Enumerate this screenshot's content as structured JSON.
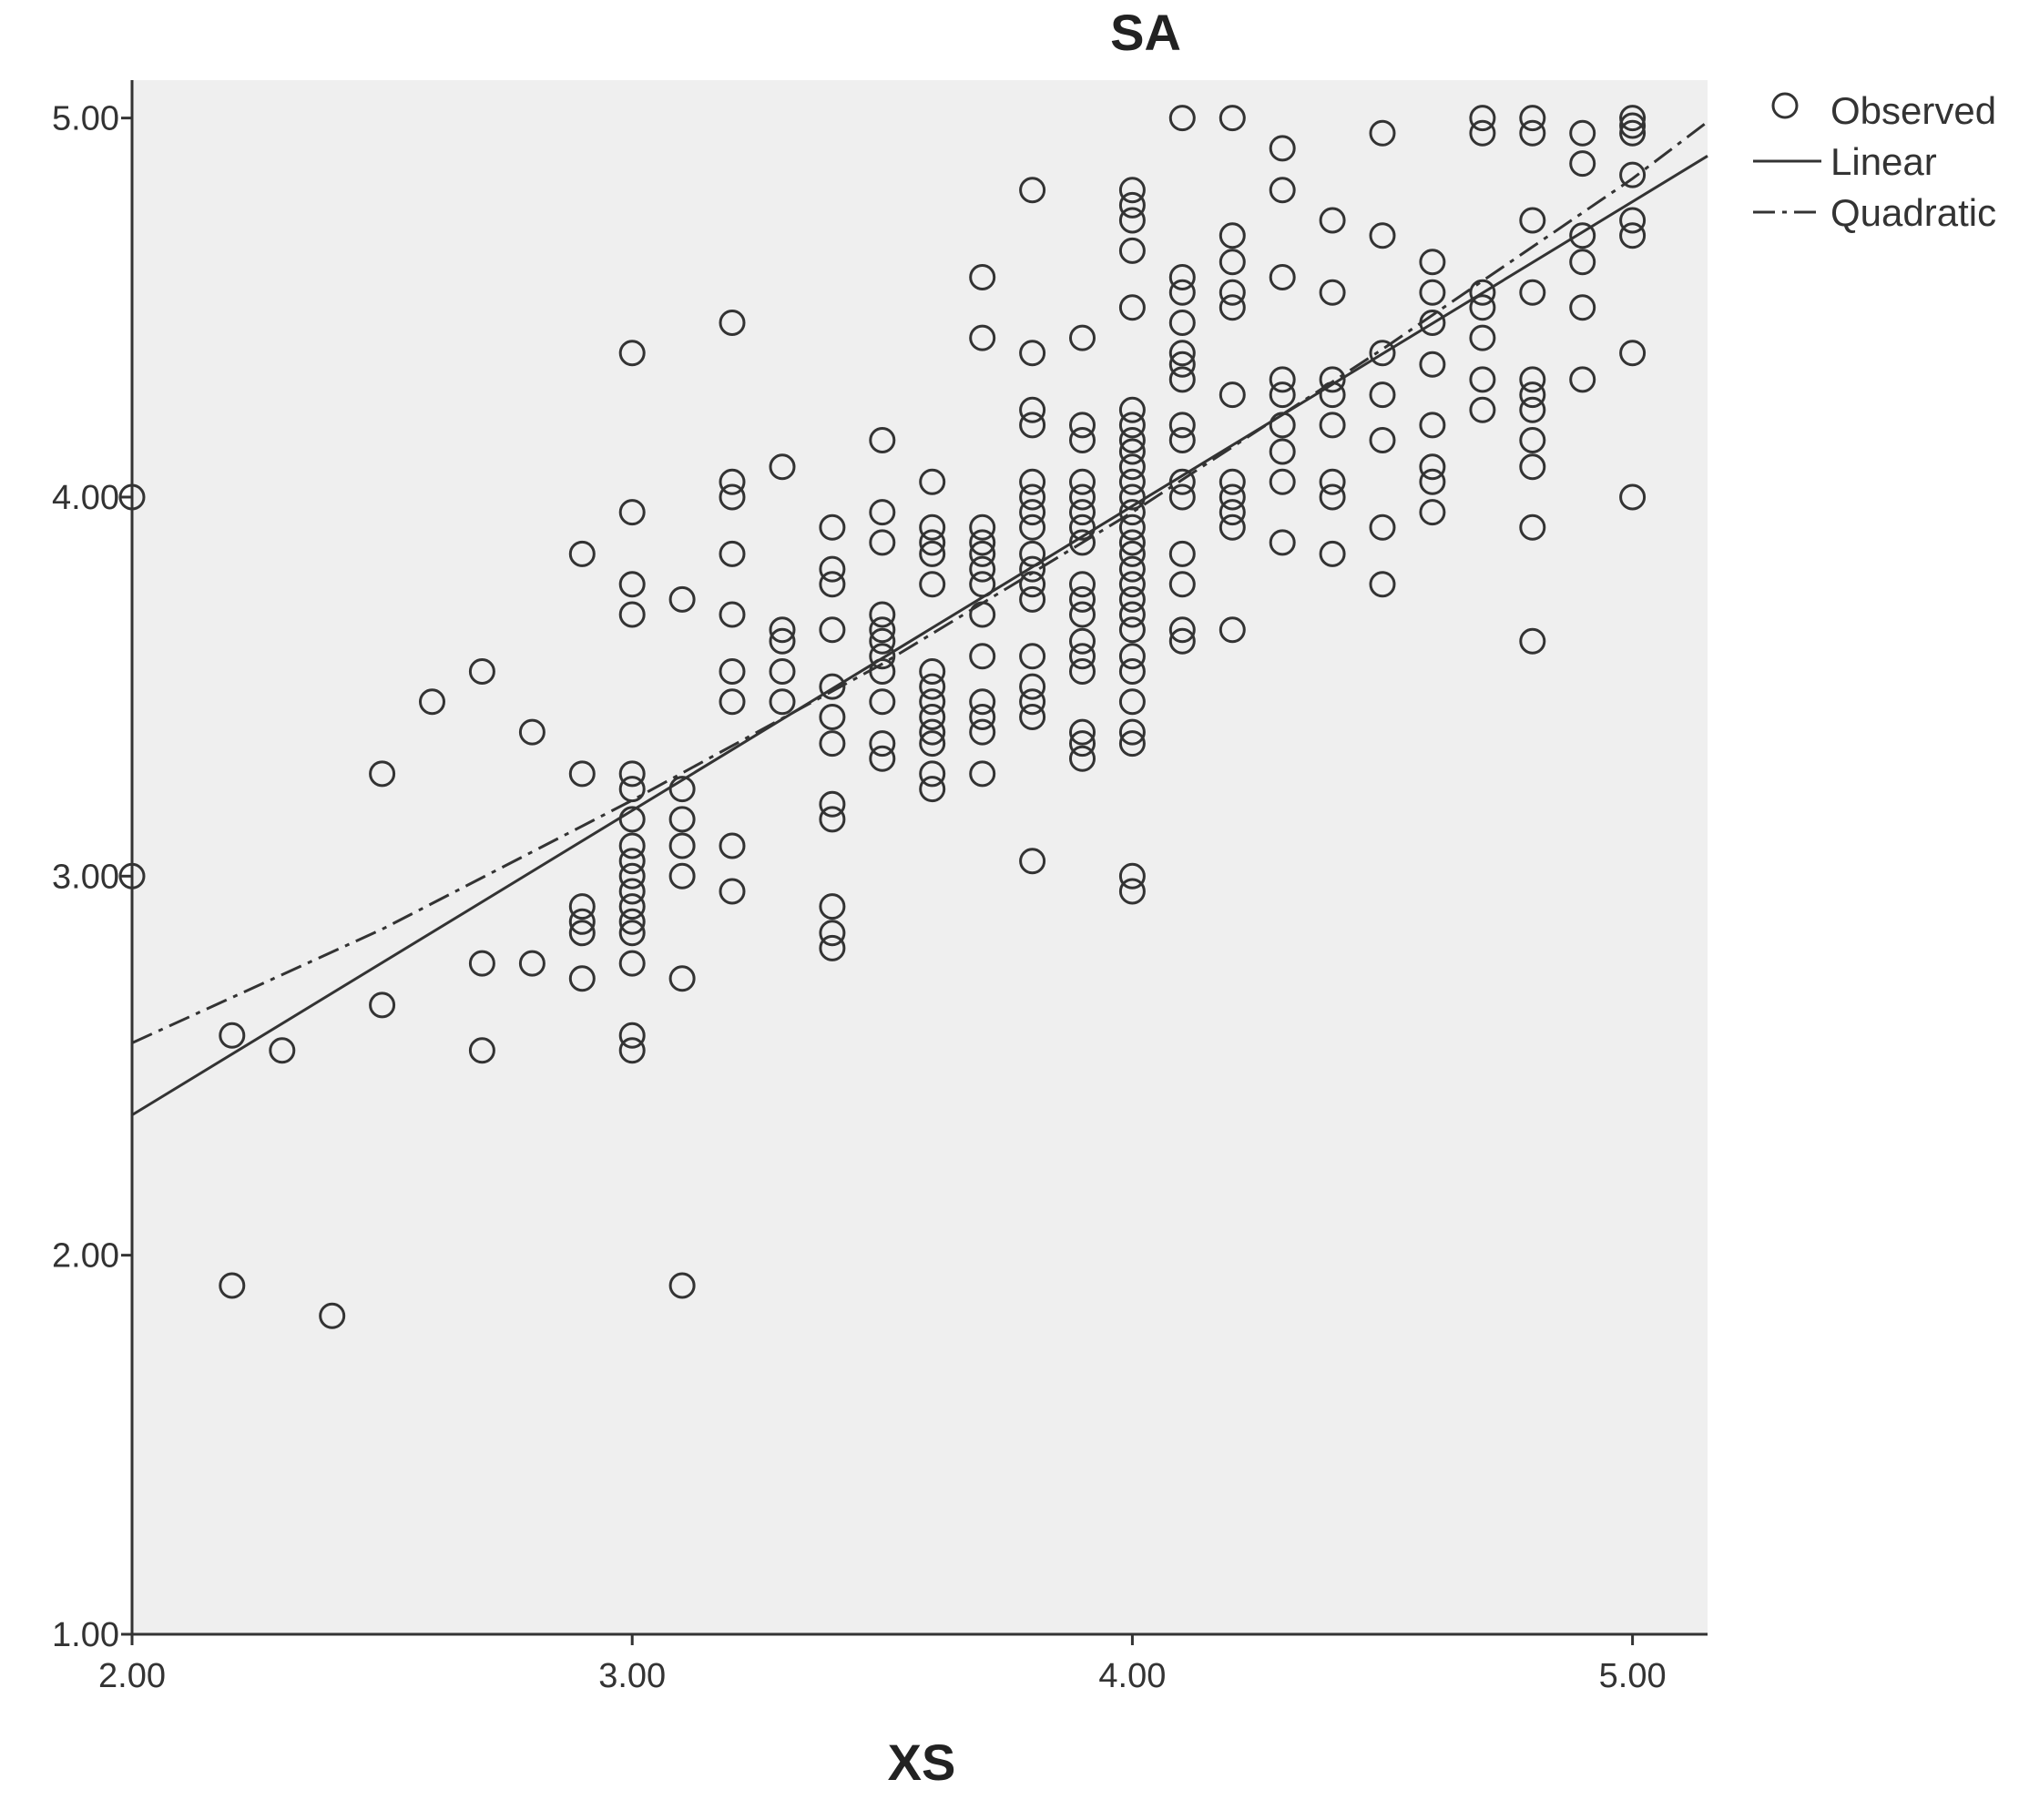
{
  "chart_data": {
    "type": "scatter",
    "title": "SA",
    "xlabel": "XS",
    "ylabel": "",
    "xlim": [
      2.0,
      5.15
    ],
    "ylim": [
      1.0,
      5.1
    ],
    "x_ticks": [
      "2.00",
      "3.00",
      "4.00",
      "5.00"
    ],
    "y_ticks": [
      "1.00",
      "2.00",
      "3.00",
      "4.00",
      "5.00"
    ],
    "grid": false,
    "legend_position": "top-right",
    "legend": [
      "Observed",
      "Linear",
      "Quadratic"
    ],
    "colors": {
      "plot_bg": "#efefef",
      "ink": "#333333"
    },
    "observed": [
      [
        2.0,
        4.0
      ],
      [
        2.0,
        3.0
      ],
      [
        2.2,
        2.58
      ],
      [
        2.2,
        1.92
      ],
      [
        2.3,
        2.54
      ],
      [
        2.4,
        1.84
      ],
      [
        2.5,
        3.27
      ],
      [
        2.5,
        2.66
      ],
      [
        2.6,
        3.46
      ],
      [
        2.7,
        3.54
      ],
      [
        2.7,
        2.77
      ],
      [
        2.7,
        2.54
      ],
      [
        2.8,
        3.38
      ],
      [
        2.8,
        2.77
      ],
      [
        2.9,
        3.85
      ],
      [
        2.9,
        3.27
      ],
      [
        2.9,
        2.92
      ],
      [
        2.9,
        2.88
      ],
      [
        2.9,
        2.85
      ],
      [
        2.9,
        2.73
      ],
      [
        3.0,
        4.38
      ],
      [
        3.0,
        3.96
      ],
      [
        3.0,
        3.77
      ],
      [
        3.0,
        3.69
      ],
      [
        3.0,
        3.27
      ],
      [
        3.0,
        3.23
      ],
      [
        3.0,
        3.15
      ],
      [
        3.0,
        3.08
      ],
      [
        3.0,
        3.04
      ],
      [
        3.0,
        3.0
      ],
      [
        3.0,
        2.96
      ],
      [
        3.0,
        2.92
      ],
      [
        3.0,
        2.88
      ],
      [
        3.0,
        2.85
      ],
      [
        3.0,
        2.77
      ],
      [
        3.0,
        2.58
      ],
      [
        3.0,
        2.54
      ],
      [
        3.1,
        3.73
      ],
      [
        3.1,
        3.23
      ],
      [
        3.1,
        3.15
      ],
      [
        3.1,
        3.08
      ],
      [
        3.1,
        3.0
      ],
      [
        3.1,
        2.73
      ],
      [
        3.1,
        1.92
      ],
      [
        3.2,
        4.46
      ],
      [
        3.2,
        4.04
      ],
      [
        3.2,
        4.0
      ],
      [
        3.2,
        3.85
      ],
      [
        3.2,
        3.69
      ],
      [
        3.2,
        3.54
      ],
      [
        3.2,
        3.46
      ],
      [
        3.2,
        3.08
      ],
      [
        3.2,
        2.96
      ],
      [
        3.3,
        4.08
      ],
      [
        3.3,
        3.65
      ],
      [
        3.3,
        3.62
      ],
      [
        3.3,
        3.54
      ],
      [
        3.3,
        3.46
      ],
      [
        3.4,
        3.92
      ],
      [
        3.4,
        3.81
      ],
      [
        3.4,
        3.77
      ],
      [
        3.4,
        3.65
      ],
      [
        3.4,
        3.5
      ],
      [
        3.4,
        3.42
      ],
      [
        3.4,
        3.35
      ],
      [
        3.4,
        3.19
      ],
      [
        3.4,
        3.15
      ],
      [
        3.4,
        2.92
      ],
      [
        3.4,
        2.85
      ],
      [
        3.4,
        2.81
      ],
      [
        3.5,
        4.15
      ],
      [
        3.5,
        3.96
      ],
      [
        3.5,
        3.88
      ],
      [
        3.5,
        3.69
      ],
      [
        3.5,
        3.65
      ],
      [
        3.5,
        3.62
      ],
      [
        3.5,
        3.58
      ],
      [
        3.5,
        3.54
      ],
      [
        3.5,
        3.46
      ],
      [
        3.5,
        3.35
      ],
      [
        3.5,
        3.31
      ],
      [
        3.6,
        4.04
      ],
      [
        3.6,
        3.92
      ],
      [
        3.6,
        3.88
      ],
      [
        3.6,
        3.85
      ],
      [
        3.6,
        3.77
      ],
      [
        3.6,
        3.54
      ],
      [
        3.6,
        3.5
      ],
      [
        3.6,
        3.46
      ],
      [
        3.6,
        3.42
      ],
      [
        3.6,
        3.38
      ],
      [
        3.6,
        3.35
      ],
      [
        3.6,
        3.27
      ],
      [
        3.6,
        3.23
      ],
      [
        3.7,
        4.58
      ],
      [
        3.7,
        4.42
      ],
      [
        3.7,
        3.92
      ],
      [
        3.7,
        3.88
      ],
      [
        3.7,
        3.85
      ],
      [
        3.7,
        3.81
      ],
      [
        3.7,
        3.77
      ],
      [
        3.7,
        3.69
      ],
      [
        3.7,
        3.58
      ],
      [
        3.7,
        3.46
      ],
      [
        3.7,
        3.42
      ],
      [
        3.7,
        3.38
      ],
      [
        3.7,
        3.27
      ],
      [
        3.8,
        4.81
      ],
      [
        3.8,
        4.38
      ],
      [
        3.8,
        4.23
      ],
      [
        3.8,
        4.19
      ],
      [
        3.8,
        4.04
      ],
      [
        3.8,
        4.0
      ],
      [
        3.8,
        3.96
      ],
      [
        3.8,
        3.92
      ],
      [
        3.8,
        3.85
      ],
      [
        3.8,
        3.81
      ],
      [
        3.8,
        3.77
      ],
      [
        3.8,
        3.73
      ],
      [
        3.8,
        3.58
      ],
      [
        3.8,
        3.5
      ],
      [
        3.8,
        3.46
      ],
      [
        3.8,
        3.42
      ],
      [
        3.8,
        3.04
      ],
      [
        3.9,
        4.42
      ],
      [
        3.9,
        4.19
      ],
      [
        3.9,
        4.15
      ],
      [
        3.9,
        4.04
      ],
      [
        3.9,
        4.0
      ],
      [
        3.9,
        3.96
      ],
      [
        3.9,
        3.92
      ],
      [
        3.9,
        3.88
      ],
      [
        3.9,
        3.77
      ],
      [
        3.9,
        3.73
      ],
      [
        3.9,
        3.69
      ],
      [
        3.9,
        3.62
      ],
      [
        3.9,
        3.58
      ],
      [
        3.9,
        3.54
      ],
      [
        3.9,
        3.38
      ],
      [
        3.9,
        3.35
      ],
      [
        3.9,
        3.31
      ],
      [
        4.0,
        4.81
      ],
      [
        4.0,
        4.77
      ],
      [
        4.0,
        4.73
      ],
      [
        4.0,
        4.65
      ],
      [
        4.0,
        4.5
      ],
      [
        4.0,
        4.23
      ],
      [
        4.0,
        4.19
      ],
      [
        4.0,
        4.15
      ],
      [
        4.0,
        4.12
      ],
      [
        4.0,
        4.08
      ],
      [
        4.0,
        4.04
      ],
      [
        4.0,
        4.0
      ],
      [
        4.0,
        3.96
      ],
      [
        4.0,
        3.92
      ],
      [
        4.0,
        3.88
      ],
      [
        4.0,
        3.85
      ],
      [
        4.0,
        3.81
      ],
      [
        4.0,
        3.77
      ],
      [
        4.0,
        3.73
      ],
      [
        4.0,
        3.69
      ],
      [
        4.0,
        3.65
      ],
      [
        4.0,
        3.58
      ],
      [
        4.0,
        3.54
      ],
      [
        4.0,
        3.46
      ],
      [
        4.0,
        3.38
      ],
      [
        4.0,
        3.35
      ],
      [
        4.0,
        3.0
      ],
      [
        4.0,
        2.96
      ],
      [
        4.1,
        5.0
      ],
      [
        4.1,
        4.58
      ],
      [
        4.1,
        4.54
      ],
      [
        4.1,
        4.46
      ],
      [
        4.1,
        4.38
      ],
      [
        4.1,
        4.35
      ],
      [
        4.1,
        4.31
      ],
      [
        4.1,
        4.19
      ],
      [
        4.1,
        4.15
      ],
      [
        4.1,
        4.04
      ],
      [
        4.1,
        4.0
      ],
      [
        4.1,
        3.85
      ],
      [
        4.1,
        3.77
      ],
      [
        4.1,
        3.65
      ],
      [
        4.1,
        3.62
      ],
      [
        4.2,
        5.0
      ],
      [
        4.2,
        4.69
      ],
      [
        4.2,
        4.62
      ],
      [
        4.2,
        4.54
      ],
      [
        4.2,
        4.5
      ],
      [
        4.2,
        4.27
      ],
      [
        4.2,
        4.04
      ],
      [
        4.2,
        4.0
      ],
      [
        4.2,
        3.96
      ],
      [
        4.2,
        3.92
      ],
      [
        4.2,
        3.65
      ],
      [
        4.3,
        4.92
      ],
      [
        4.3,
        4.81
      ],
      [
        4.3,
        4.58
      ],
      [
        4.3,
        4.31
      ],
      [
        4.3,
        4.27
      ],
      [
        4.3,
        4.19
      ],
      [
        4.3,
        4.12
      ],
      [
        4.3,
        4.04
      ],
      [
        4.3,
        3.88
      ],
      [
        4.4,
        4.73
      ],
      [
        4.4,
        4.54
      ],
      [
        4.4,
        4.31
      ],
      [
        4.4,
        4.27
      ],
      [
        4.4,
        4.19
      ],
      [
        4.4,
        4.04
      ],
      [
        4.4,
        4.0
      ],
      [
        4.4,
        3.85
      ],
      [
        4.5,
        4.96
      ],
      [
        4.5,
        4.69
      ],
      [
        4.5,
        4.38
      ],
      [
        4.5,
        4.27
      ],
      [
        4.5,
        4.15
      ],
      [
        4.5,
        3.92
      ],
      [
        4.5,
        3.77
      ],
      [
        4.6,
        4.62
      ],
      [
        4.6,
        4.54
      ],
      [
        4.6,
        4.46
      ],
      [
        4.6,
        4.35
      ],
      [
        4.6,
        4.19
      ],
      [
        4.6,
        4.08
      ],
      [
        4.6,
        4.04
      ],
      [
        4.6,
        3.96
      ],
      [
        4.7,
        5.0
      ],
      [
        4.7,
        4.96
      ],
      [
        4.7,
        4.54
      ],
      [
        4.7,
        4.5
      ],
      [
        4.7,
        4.42
      ],
      [
        4.7,
        4.31
      ],
      [
        4.7,
        4.23
      ],
      [
        4.8,
        5.0
      ],
      [
        4.8,
        4.96
      ],
      [
        4.8,
        4.73
      ],
      [
        4.8,
        4.54
      ],
      [
        4.8,
        4.31
      ],
      [
        4.8,
        4.27
      ],
      [
        4.8,
        4.23
      ],
      [
        4.8,
        4.15
      ],
      [
        4.8,
        4.08
      ],
      [
        4.8,
        3.92
      ],
      [
        4.8,
        3.62
      ],
      [
        4.9,
        4.96
      ],
      [
        4.9,
        4.88
      ],
      [
        4.9,
        4.69
      ],
      [
        4.9,
        4.62
      ],
      [
        4.9,
        4.5
      ],
      [
        4.9,
        4.31
      ],
      [
        5.0,
        5.0
      ],
      [
        5.0,
        4.98
      ],
      [
        5.0,
        4.96
      ],
      [
        5.0,
        4.85
      ],
      [
        5.0,
        4.73
      ],
      [
        5.0,
        4.69
      ],
      [
        5.0,
        4.38
      ],
      [
        5.0,
        4.0
      ]
    ],
    "fits": {
      "linear": {
        "x": [
          2.0,
          5.15
        ],
        "y": [
          2.37,
          4.9
        ]
      },
      "quadratic": {
        "x": [
          2.0,
          2.5,
          3.0,
          3.5,
          4.0,
          4.5,
          5.0,
          5.15
        ],
        "y": [
          2.56,
          2.86,
          3.2,
          3.56,
          3.96,
          4.39,
          4.84,
          4.99
        ]
      }
    }
  }
}
